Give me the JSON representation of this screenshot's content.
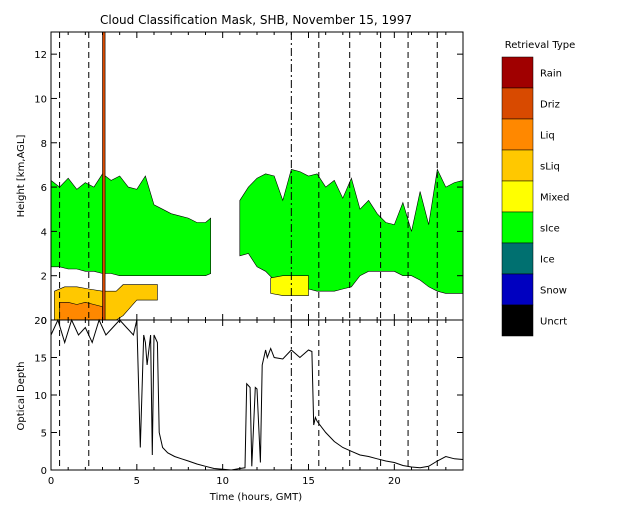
{
  "chart_data": [
    {
      "type": "area",
      "title": "Cloud Classification Mask, SHB, November 15, 1997",
      "ylabel": "Height [km,AGL]",
      "xlim": [
        0,
        24
      ],
      "ylim": [
        0,
        13
      ],
      "yticks": [
        0,
        2,
        4,
        6,
        8,
        10,
        12
      ],
      "dashed_time_markers": [
        0.5,
        2.2,
        14,
        15.6,
        17.4,
        19.2,
        20.8,
        22.5
      ],
      "dashdot_time_markers": [
        14
      ],
      "legend": {
        "title": "Retrieval Type",
        "placement": "right",
        "entries": [
          {
            "label": "Rain",
            "color": "#a00000"
          },
          {
            "label": "Driz",
            "color": "#d84a00"
          },
          {
            "label": "Liq",
            "color": "#ff8800"
          },
          {
            "label": "sLiq",
            "color": "#ffc800"
          },
          {
            "label": "Mixed",
            "color": "#ffff00"
          },
          {
            "label": "sIce",
            "color": "#00ff00"
          },
          {
            "label": "Ice",
            "color": "#007070"
          },
          {
            "label": "Snow",
            "color": "#0000c0"
          },
          {
            "label": "Uncrt",
            "color": "#000000"
          }
        ]
      },
      "regions": [
        {
          "class": "sIce",
          "segments": [
            {
              "x": [
                0,
                0.5,
                1,
                1.5,
                2,
                2.5,
                3,
                3.5,
                4,
                4.5,
                5,
                5.5,
                6,
                6.5,
                7,
                7.5,
                8,
                8.5,
                9,
                9.3
              ],
              "top": [
                6.3,
                6.0,
                6.4,
                5.9,
                6.2,
                6.0,
                6.6,
                6.3,
                6.5,
                6.0,
                5.9,
                6.5,
                5.2,
                5.0,
                4.8,
                4.7,
                4.6,
                4.4,
                4.4,
                4.6
              ],
              "base": [
                2.4,
                2.4,
                2.3,
                2.3,
                2.2,
                2.2,
                2.1,
                2.1,
                2.0,
                2.0,
                2.0,
                2.0,
                2.0,
                2.0,
                2.0,
                2.0,
                2.0,
                2.0,
                2.0,
                2.1
              ]
            },
            {
              "x": [
                11.0,
                11.5,
                12,
                12.5,
                13,
                13.5,
                14,
                14.5,
                15,
                15.5,
                16,
                16.5,
                17,
                17.5,
                18,
                18.5,
                19,
                19.5,
                20,
                20.5,
                21,
                21.5,
                22,
                22.5,
                23,
                23.5,
                24
              ],
              "top": [
                5.4,
                6.0,
                6.4,
                6.6,
                6.5,
                5.4,
                6.8,
                6.7,
                6.5,
                6.6,
                6.0,
                6.3,
                5.5,
                6.4,
                5.0,
                5.4,
                4.8,
                4.4,
                4.3,
                5.3,
                4.0,
                5.8,
                4.3,
                6.8,
                6.0,
                6.2,
                6.3
              ],
              "base": [
                2.9,
                3.0,
                2.4,
                2.2,
                1.8,
                1.4,
                1.4,
                1.5,
                1.4,
                1.3,
                1.3,
                1.3,
                1.4,
                1.5,
                2.0,
                2.2,
                2.2,
                2.2,
                2.2,
                2.0,
                2.0,
                1.8,
                1.5,
                1.3,
                1.2,
                1.2,
                1.2
              ]
            }
          ]
        },
        {
          "class": "Mixed",
          "segments": [
            {
              "x": [
                12.8,
                13.5,
                14.5,
                15.0
              ],
              "top": [
                1.9,
                2.0,
                2.0,
                2.0
              ],
              "base": [
                1.2,
                1.1,
                1.1,
                1.1
              ]
            }
          ]
        },
        {
          "class": "sLiq",
          "segments": [
            {
              "x": [
                0.2,
                0.8,
                1.5,
                2.2,
                3.0,
                3.8,
                4.2,
                5.0,
                5.8,
                6.2
              ],
              "top": [
                1.3,
                1.5,
                1.5,
                1.4,
                1.3,
                1.3,
                1.6,
                1.6,
                1.6,
                1.6
              ],
              "base": [
                0,
                0,
                0,
                0,
                0,
                0,
                0.2,
                0.9,
                0.9,
                0.9
              ]
            }
          ]
        },
        {
          "class": "Liq",
          "segments": [
            {
              "x": [
                0.5,
                1.0,
                1.5,
                2.0,
                2.5,
                3.0
              ],
              "top": [
                0.8,
                0.8,
                0.7,
                0.8,
                0.7,
                0.6
              ],
              "base": [
                0,
                0,
                0,
                0,
                0,
                0
              ]
            }
          ]
        },
        {
          "class": "Driz",
          "segments": [
            {
              "x": [
                3.0,
                3.15
              ],
              "top": [
                13,
                13
              ],
              "base": [
                0,
                0
              ]
            }
          ]
        }
      ]
    },
    {
      "type": "line",
      "xlabel": "Time (hours, GMT)",
      "ylabel": "Optical Depth",
      "xlim": [
        0,
        24
      ],
      "ylim": [
        0,
        20
      ],
      "xticks": [
        0,
        5,
        10,
        15,
        20
      ],
      "yticks": [
        0,
        5,
        10,
        15,
        20
      ],
      "series": [
        {
          "x": [
            0,
            0.4,
            0.8,
            1.2,
            1.6,
            2.0,
            2.4,
            2.8,
            3.2,
            3.6,
            4.0,
            4.4,
            4.8,
            5.0,
            5.2,
            5.4,
            5.5,
            5.6,
            5.8,
            5.9,
            6.0,
            6.2,
            6.3,
            6.5,
            6.8,
            7.2,
            7.6,
            8.0,
            8.5,
            9.0,
            9.5,
            10.0,
            10.5,
            11.0,
            11.3,
            11.4,
            11.6,
            11.7,
            11.9,
            12.0,
            12.2,
            12.3,
            12.5,
            12.6,
            12.8,
            13.0,
            13.5,
            14.0,
            14.5,
            15.0,
            15.2,
            15.3,
            15.4,
            15.5,
            16.0,
            16.5,
            17.0,
            17.5,
            18.0,
            18.5,
            19.0,
            19.5,
            20.0,
            20.5,
            21.0,
            21.5,
            22.0,
            22.5,
            23.0,
            23.5,
            24.0
          ],
          "y": [
            18,
            20,
            17,
            20,
            18,
            19,
            17,
            20,
            18,
            19,
            20,
            19,
            18,
            20,
            3,
            18,
            17,
            14,
            18,
            2,
            18,
            17,
            5,
            3,
            2.3,
            1.8,
            1.5,
            1.2,
            0.8,
            0.5,
            0.2,
            0.1,
            0,
            0.2,
            0.3,
            11.5,
            11.0,
            0.5,
            11.0,
            10.8,
            1.0,
            14.0,
            16.0,
            15.0,
            16.2,
            15.0,
            14.8,
            16.0,
            15.0,
            16.0,
            15.8,
            6.0,
            7.0,
            6.5,
            5.0,
            3.8,
            3.0,
            2.5,
            2.0,
            1.8,
            1.5,
            1.2,
            1.0,
            0.6,
            0.4,
            0.3,
            0.5,
            1.2,
            1.8,
            1.5,
            1.4
          ]
        }
      ]
    }
  ]
}
